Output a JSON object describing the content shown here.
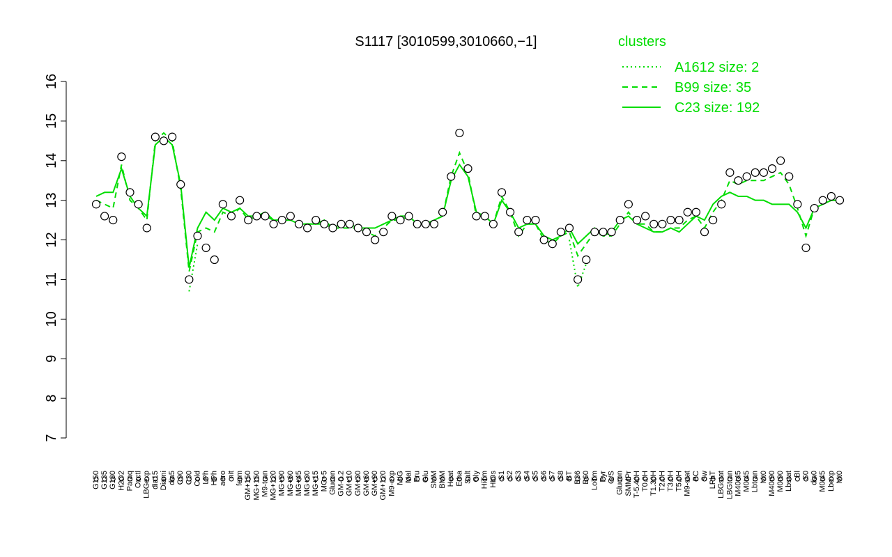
{
  "chart_data": {
    "type": "line",
    "title": "S1117 [3010599,3010660,−1]",
    "legend_title": "clusters",
    "legend_position": "top-right",
    "categories": [
      "G150",
      "G135",
      "G180",
      "H2O2",
      "Paraq",
      "Oxctl",
      "LBGexp",
      "dia15",
      "Diami",
      "dia5",
      "C90",
      "C30",
      "Cold",
      "LPh",
      "HPh",
      "aero",
      "nit",
      "ferm",
      "GM+150",
      "MG+150",
      "M9-tran",
      "MG+120",
      "MG+90",
      "MG+60",
      "MG+45",
      "MG+30",
      "MG+15",
      "MG+5",
      "Glucon",
      "GM-0.2",
      "GM+10",
      "GM+30",
      "GM+60",
      "GM+90",
      "GM+120",
      "M9-exp",
      "M/G",
      "Mal",
      "Fru",
      "Glu",
      "SMM",
      "BMM",
      "Heat",
      "Etha",
      "Salt",
      "Gly",
      "HiTm",
      "HiOs",
      "S1",
      "S2",
      "S3",
      "S4",
      "S5",
      "S6",
      "S7",
      "S8",
      "BT",
      "B36",
      "B60",
      "LoTm",
      "Pyr",
      "G/S",
      "Glucon",
      "SMMPr",
      "T-5.40H",
      "T0.0H",
      "T1.30H",
      "T2.0H",
      "T3.0H",
      "T5.0H",
      "M9-stat",
      "BC",
      "Sw",
      "LPhT",
      "LBGstat",
      "LBGtran",
      "M40t45",
      "M0t45",
      "Lbtran",
      "Mt0",
      "M40t90",
      "M0t90",
      "Lbstat",
      "Bl",
      "S0",
      "dia0",
      "M0t45",
      "Lbexp",
      "Mt0"
    ],
    "values": [
      12.9,
      12.6,
      12.5,
      14.1,
      13.2,
      12.9,
      12.3,
      14.6,
      14.5,
      14.6,
      13.4,
      11.0,
      12.1,
      11.8,
      11.5,
      12.9,
      12.6,
      13.0,
      12.5,
      12.6,
      12.6,
      12.4,
      12.5,
      12.6,
      12.4,
      12.3,
      12.5,
      12.4,
      12.3,
      12.4,
      12.4,
      12.3,
      12.2,
      12.0,
      12.2,
      12.6,
      12.5,
      12.6,
      12.4,
      12.4,
      12.4,
      12.7,
      13.6,
      14.7,
      13.8,
      12.6,
      12.6,
      12.4,
      13.2,
      12.7,
      12.2,
      12.5,
      12.5,
      12.0,
      11.9,
      12.2,
      12.3,
      11.0,
      11.5,
      12.2,
      12.2,
      12.2,
      12.5,
      12.9,
      12.5,
      12.6,
      12.4,
      12.4,
      12.5,
      12.5,
      12.7,
      12.7,
      12.2,
      12.5,
      12.9,
      13.7,
      13.5,
      13.6,
      13.7,
      13.7,
      13.8,
      14.0,
      13.6,
      12.9,
      11.8,
      12.8,
      13.0,
      13.1,
      13.0
    ],
    "point_color": "#ffffff",
    "series": [
      {
        "name": "A1612 size: 2",
        "color": "#00dd00",
        "style": "dotted",
        "values": [
          null,
          null,
          null,
          null,
          null,
          null,
          null,
          null,
          null,
          null,
          null,
          10.7,
          11.9,
          null,
          null,
          null,
          null,
          null,
          null,
          null,
          null,
          null,
          null,
          null,
          null,
          null,
          null,
          null,
          null,
          null,
          null,
          null,
          null,
          null,
          null,
          null,
          null,
          null,
          null,
          null,
          null,
          null,
          null,
          null,
          null,
          null,
          null,
          null,
          null,
          null,
          null,
          null,
          null,
          null,
          null,
          null,
          12.0,
          10.8,
          11.4,
          null,
          null,
          null,
          null,
          null,
          null,
          null,
          null,
          null,
          null,
          null,
          null,
          null,
          null,
          null,
          null,
          null,
          null,
          null,
          null,
          null,
          null,
          null,
          null,
          null,
          null,
          null,
          null,
          null,
          null
        ]
      },
      {
        "name": "B99 size: 35",
        "color": "#00dd00",
        "style": "dashed",
        "values": [
          13.0,
          12.9,
          12.8,
          13.9,
          13.0,
          12.8,
          12.5,
          14.5,
          14.7,
          14.5,
          13.3,
          11.2,
          12.2,
          12.3,
          12.2,
          12.7,
          12.6,
          12.8,
          12.5,
          12.6,
          12.6,
          12.5,
          12.5,
          12.5,
          12.4,
          12.4,
          12.4,
          12.4,
          12.3,
          12.3,
          12.3,
          12.3,
          12.2,
          12.1,
          12.3,
          12.5,
          12.5,
          12.6,
          12.4,
          12.4,
          12.5,
          12.6,
          13.6,
          14.2,
          13.7,
          12.6,
          12.6,
          12.4,
          13.1,
          12.7,
          12.1,
          12.4,
          12.4,
          12.0,
          11.9,
          12.1,
          12.2,
          11.6,
          11.9,
          12.2,
          12.1,
          12.1,
          12.4,
          12.7,
          12.4,
          12.4,
          12.2,
          12.2,
          12.3,
          12.3,
          12.5,
          12.6,
          12.3,
          12.7,
          13.0,
          13.5,
          13.4,
          13.5,
          13.5,
          13.5,
          13.6,
          13.7,
          13.4,
          12.8,
          12.1,
          12.8,
          12.9,
          13.0,
          13.0
        ]
      },
      {
        "name": "C23 size: 192",
        "color": "#00dd00",
        "style": "solid",
        "values": [
          13.1,
          13.2,
          13.2,
          13.8,
          13.1,
          12.8,
          12.6,
          14.4,
          14.6,
          14.4,
          13.4,
          11.3,
          12.3,
          12.7,
          12.5,
          12.8,
          12.7,
          12.8,
          12.6,
          12.6,
          12.7,
          12.5,
          12.5,
          12.5,
          12.4,
          12.4,
          12.4,
          12.5,
          12.3,
          12.4,
          12.4,
          12.3,
          12.3,
          12.3,
          12.4,
          12.5,
          12.6,
          12.6,
          12.4,
          12.4,
          12.5,
          12.6,
          13.5,
          13.9,
          13.6,
          12.7,
          12.6,
          12.4,
          13.0,
          12.7,
          12.3,
          12.4,
          12.4,
          12.1,
          12.0,
          12.1,
          12.3,
          11.9,
          12.1,
          12.3,
          12.1,
          12.2,
          12.5,
          12.6,
          12.4,
          12.3,
          12.2,
          12.2,
          12.3,
          12.2,
          12.4,
          12.6,
          12.5,
          12.9,
          13.1,
          13.2,
          13.1,
          13.1,
          13.0,
          13.0,
          12.9,
          12.9,
          12.9,
          12.7,
          12.3,
          12.8,
          12.9,
          13.0,
          13.0
        ]
      }
    ],
    "ylim": [
      7,
      16
    ],
    "yticks": [
      7,
      8,
      9,
      10,
      11,
      12,
      13,
      14,
      15,
      16
    ]
  }
}
